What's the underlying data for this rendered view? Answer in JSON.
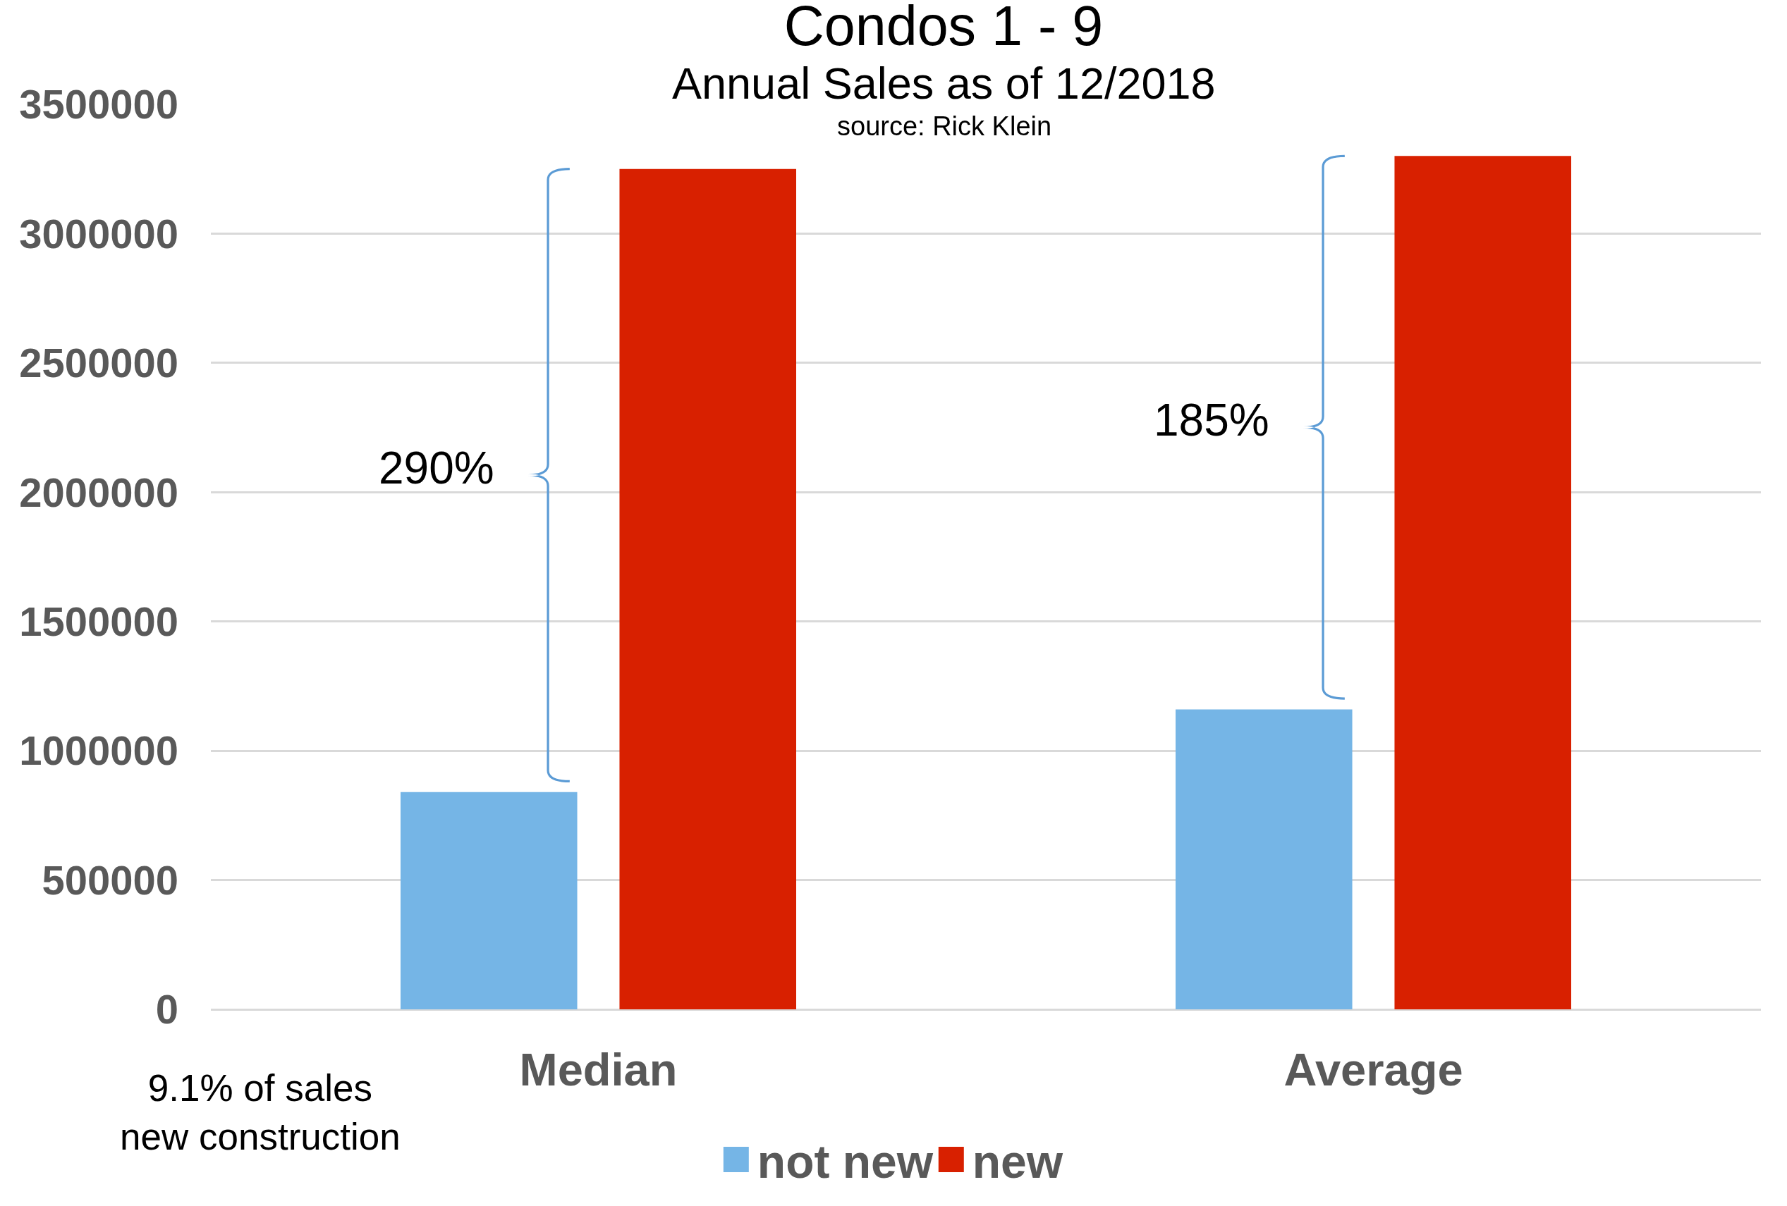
{
  "chart_data": {
    "type": "bar",
    "title": "Condos 1 - 9",
    "subtitle": "Annual Sales as of 12/2018",
    "categories": [
      "Median",
      "Average"
    ],
    "series": [
      {
        "name": "not new",
        "color": "#75b5e6",
        "values": [
          840000,
          1160000
        ]
      },
      {
        "name": "new",
        "color": "#d82000",
        "values": [
          3250000,
          3300000
        ]
      }
    ],
    "ylim": [
      0,
      3500000
    ],
    "yticks": [
      0,
      500000,
      1000000,
      1500000,
      2000000,
      2500000,
      3000000,
      3500000
    ],
    "grid": "y",
    "legend": "bottom",
    "annotations": [
      "290%",
      "185%",
      "source: Rick Klein",
      "9.1% of sales\nnew construction"
    ]
  }
}
